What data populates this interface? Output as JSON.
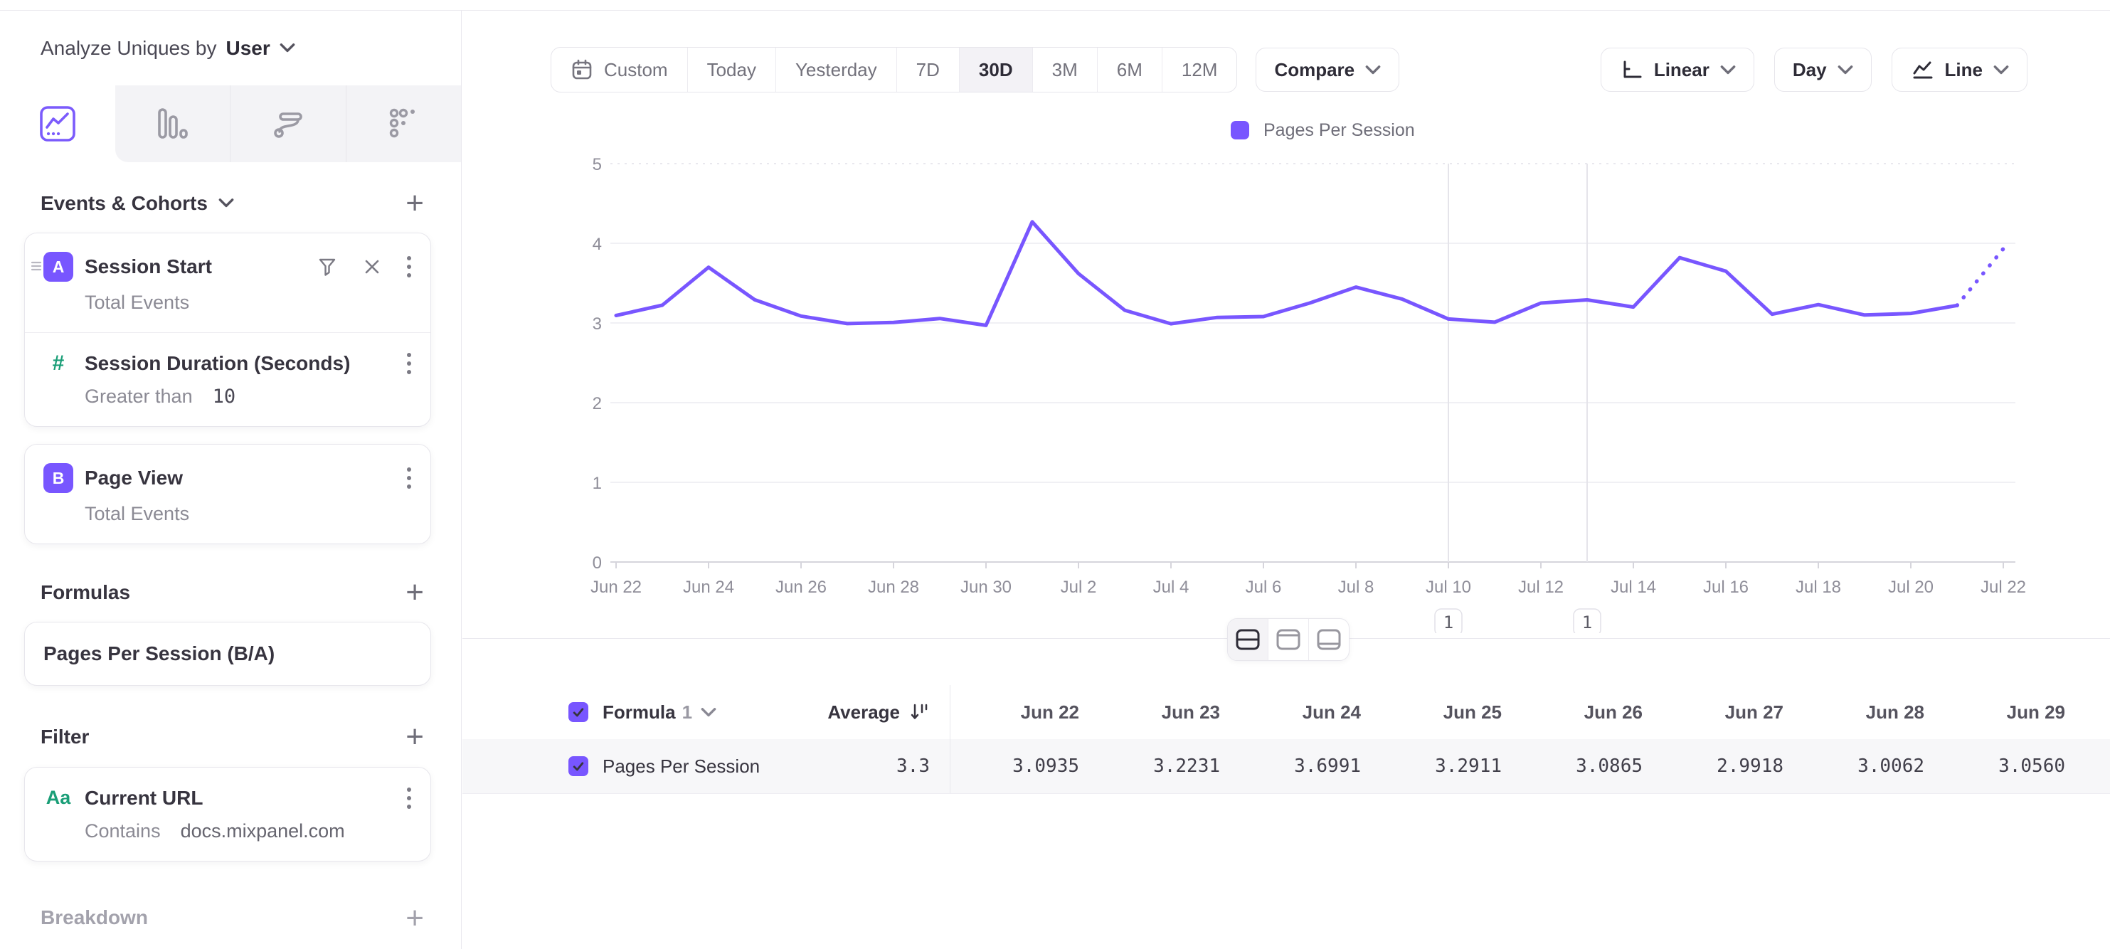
{
  "header": {
    "analyze_by_label": "Analyze Uniques by",
    "analyze_by_value": "User"
  },
  "colors": {
    "accent": "#7856FF",
    "green": "#1a9e77",
    "grid": "#ececf1",
    "axis_text": "#8f8e99"
  },
  "sidebar": {
    "tabs": [
      {
        "id": "insights",
        "icon": "line-chart-icon",
        "active": true
      },
      {
        "id": "bar",
        "icon": "bar-chart-icon",
        "active": false
      },
      {
        "id": "flows",
        "icon": "flows-icon",
        "active": false
      },
      {
        "id": "retention",
        "icon": "retention-icon",
        "active": false
      }
    ],
    "events": {
      "title": "Events & Cohorts",
      "session_start": {
        "badge": "A",
        "title": "Session Start",
        "subtitle": "Total Events"
      },
      "session_duration": {
        "glyph": "#",
        "title": "Session Duration (Seconds)",
        "condition_label": "Greater than",
        "condition_value": "10"
      },
      "page_view": {
        "badge": "B",
        "title": "Page View",
        "subtitle": "Total Events"
      }
    },
    "formulas": {
      "title": "Formulas",
      "formula": "Pages Per Session (B/A)"
    },
    "filter": {
      "title": "Filter",
      "card": {
        "glyph": "Aa",
        "title": "Current URL",
        "condition_label": "Contains",
        "condition_value": "docs.mixpanel.com"
      }
    },
    "breakdown": {
      "title": "Breakdown"
    }
  },
  "toolbar": {
    "date_ranges": [
      "Custom",
      "Today",
      "Yesterday",
      "7D",
      "30D",
      "3M",
      "6M",
      "12M"
    ],
    "active_range": "30D",
    "compare_label": "Compare",
    "scale_label": "Linear",
    "interval_label": "Day",
    "chart_type_label": "Line"
  },
  "chart_data": {
    "type": "line",
    "title": "",
    "xlabel": "",
    "ylabel": "",
    "ylim": [
      0,
      5
    ],
    "yticks": [
      0,
      1,
      2,
      3,
      4,
      5
    ],
    "grid": true,
    "legend_position": "top",
    "categories": [
      "Jun 22",
      "Jun 23",
      "Jun 24",
      "Jun 25",
      "Jun 26",
      "Jun 27",
      "Jun 28",
      "Jun 29",
      "Jun 30",
      "Jul 1",
      "Jul 2",
      "Jul 3",
      "Jul 4",
      "Jul 5",
      "Jul 6",
      "Jul 7",
      "Jul 8",
      "Jul 9",
      "Jul 10",
      "Jul 11",
      "Jul 12",
      "Jul 13",
      "Jul 14",
      "Jul 15",
      "Jul 16",
      "Jul 17",
      "Jul 18",
      "Jul 19",
      "Jul 20",
      "Jul 21",
      "Jul 22"
    ],
    "x_tick_labels": [
      "Jun 22",
      "Jun 24",
      "Jun 26",
      "Jun 28",
      "Jun 30",
      "Jul 2",
      "Jul 4",
      "Jul 6",
      "Jul 8",
      "Jul 10",
      "Jul 12",
      "Jul 14",
      "Jul 16",
      "Jul 18",
      "Jul 20",
      "Jul 22"
    ],
    "series": [
      {
        "name": "Pages Per Session",
        "color": "#7856FF",
        "values": [
          3.0935,
          3.2231,
          3.6991,
          3.2911,
          3.0865,
          2.9918,
          3.0062,
          3.056,
          2.97,
          4.27,
          3.62,
          3.16,
          2.99,
          3.07,
          3.08,
          3.25,
          3.45,
          3.3,
          3.05,
          3.01,
          3.25,
          3.29,
          3.2,
          3.82,
          3.65,
          3.11,
          3.23,
          3.1,
          3.12,
          3.22,
          3.93
        ]
      }
    ],
    "last_segment_dotted": true,
    "annotations": [
      {
        "x": "Jul 10",
        "label": "1"
      },
      {
        "x": "Jul 13",
        "label": "1"
      }
    ]
  },
  "view_toggles": {
    "options": [
      {
        "id": "split-view",
        "active": true
      },
      {
        "id": "chart-only",
        "active": false
      },
      {
        "id": "table-only",
        "active": false
      }
    ]
  },
  "table": {
    "name_header": "Formula",
    "name_header_index": "1",
    "average_header": "Average",
    "date_columns": [
      "Jun 22",
      "Jun 23",
      "Jun 24",
      "Jun 25",
      "Jun 26",
      "Jun 27",
      "Jun 28",
      "Jun 29"
    ],
    "row": {
      "name": "Pages Per Session",
      "average": "3.3",
      "values": [
        "3.0935",
        "3.2231",
        "3.6991",
        "3.2911",
        "3.0865",
        "2.9918",
        "3.0062",
        "3.0560"
      ]
    }
  }
}
